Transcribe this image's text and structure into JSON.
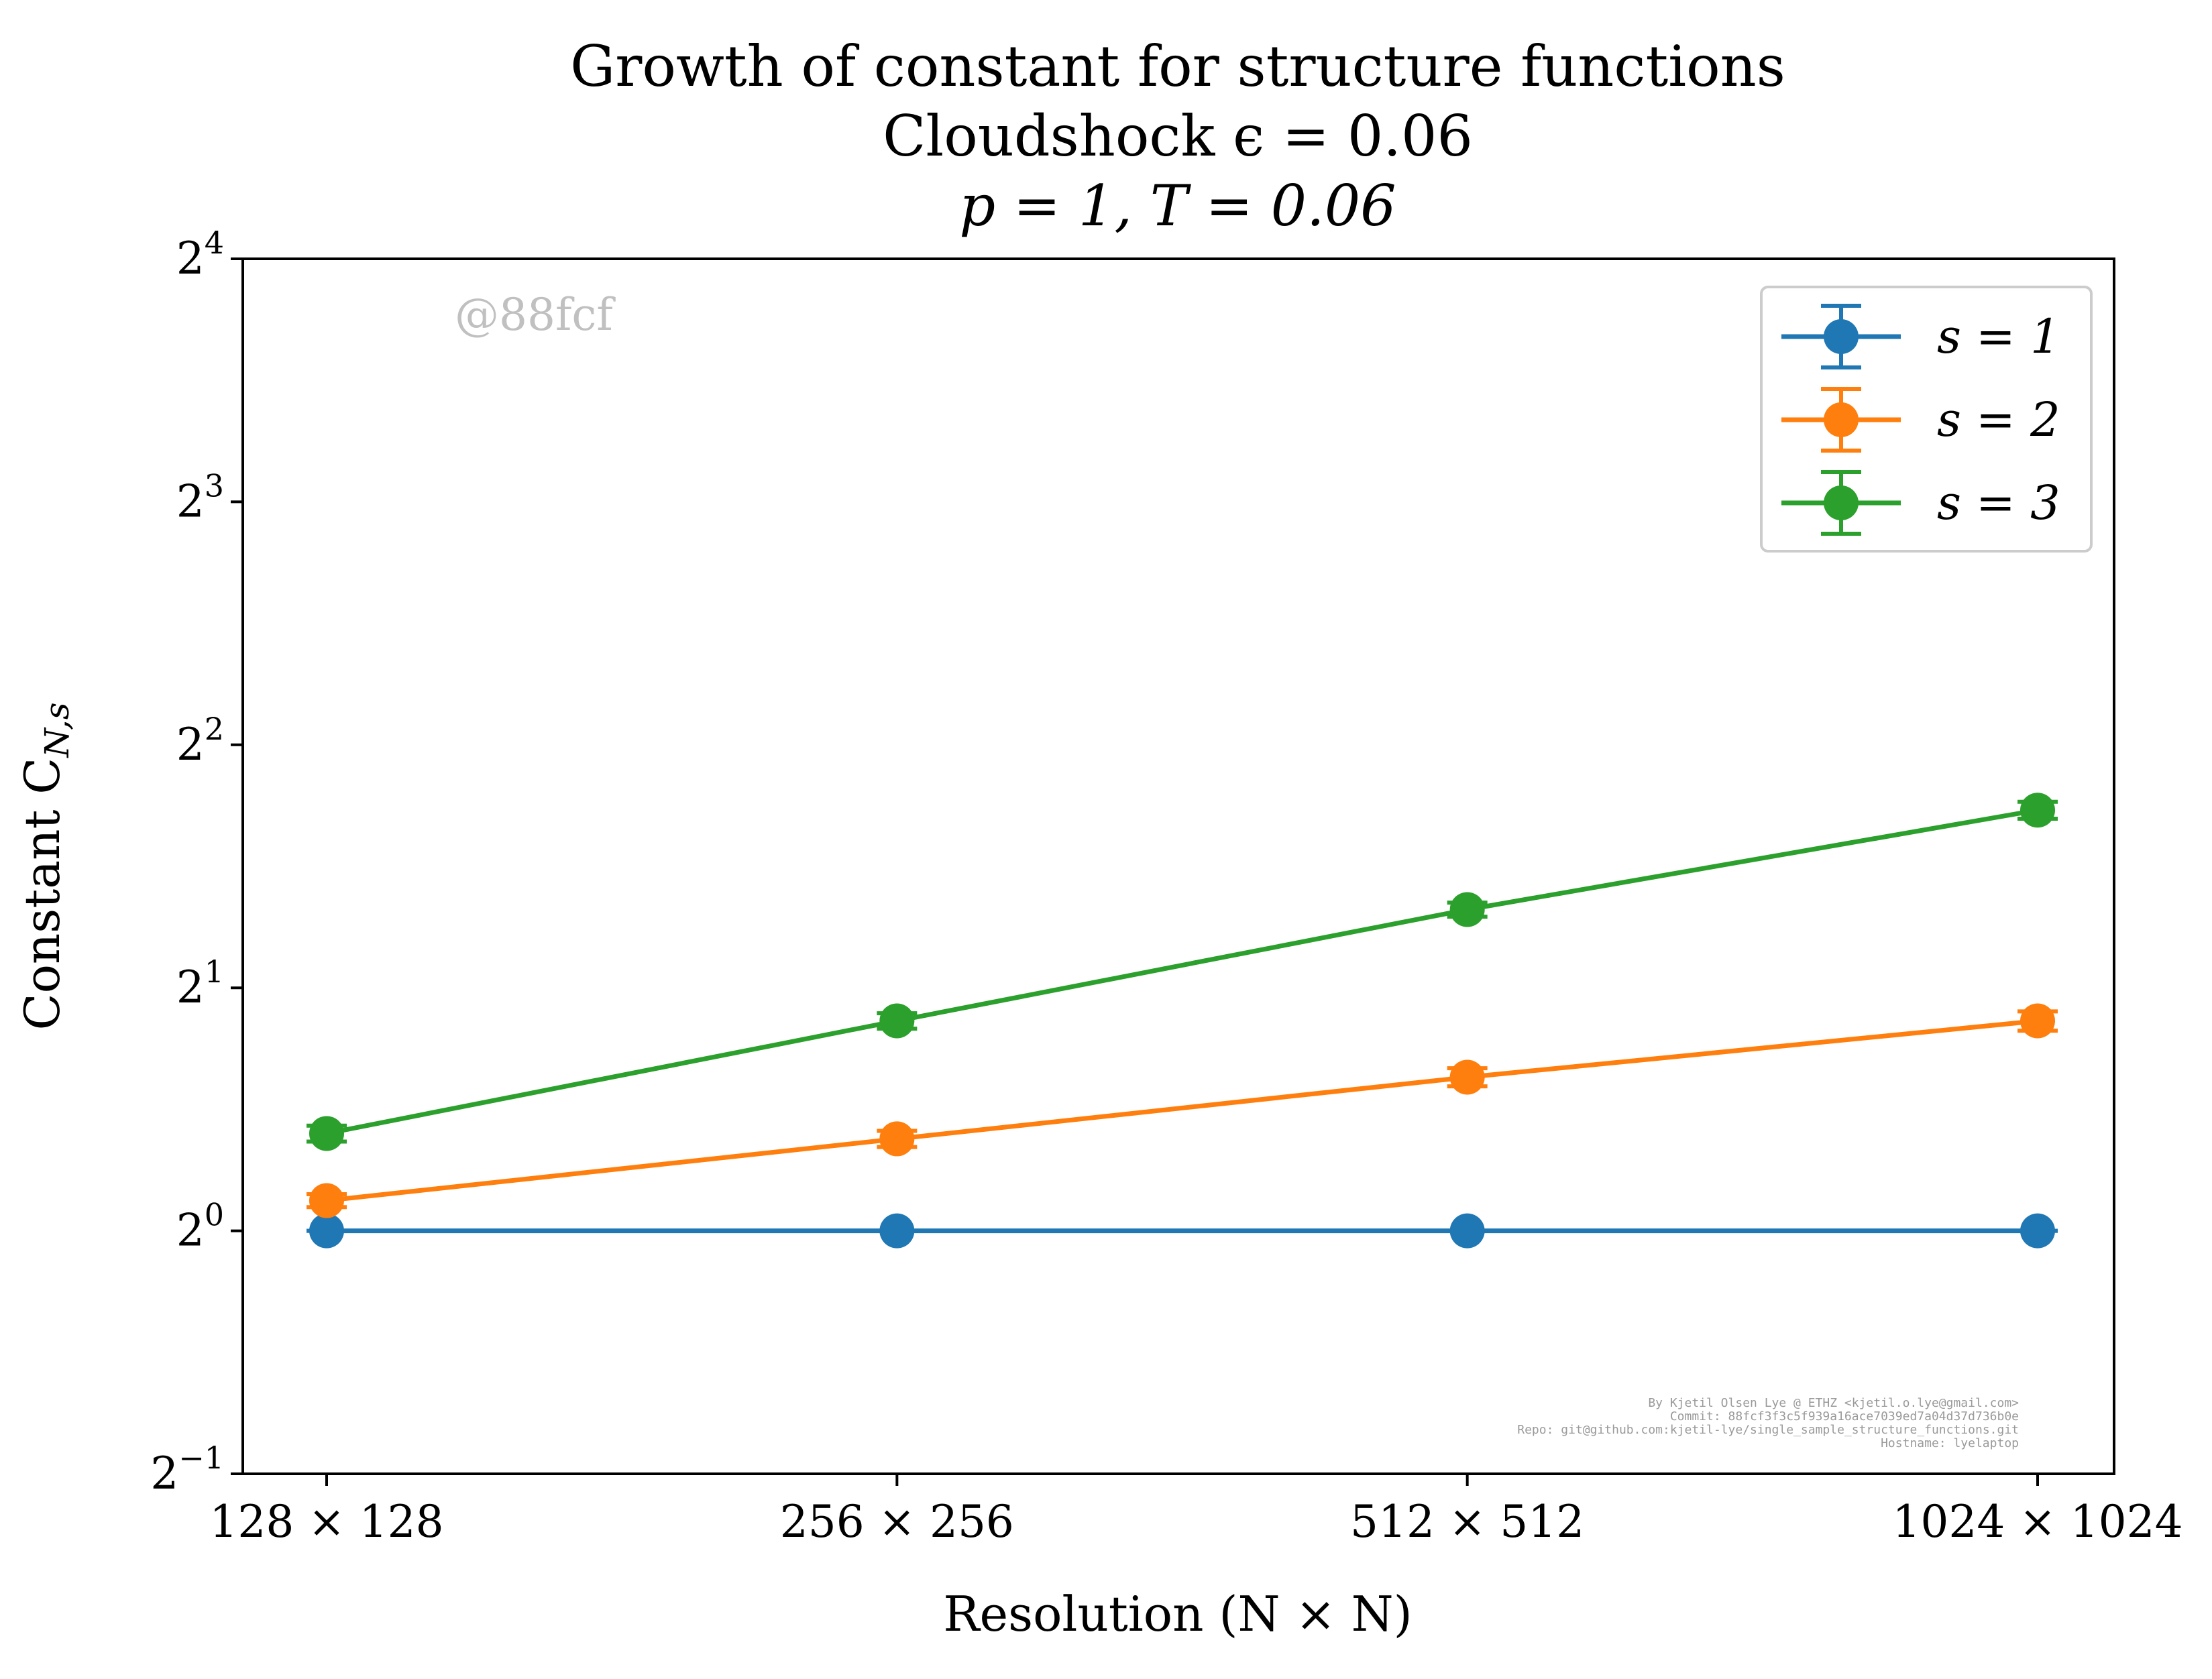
{
  "chart_data": {
    "type": "line",
    "title": [
      "Growth of constant for structure functions",
      "Cloudshock ϵ = 0.06",
      "p = 1, T = 0.06"
    ],
    "xlabel": "Resolution (N × N)",
    "ylabel": "Constant C",
    "ylabel_sub": "N,s",
    "categories": [
      "128 × 128",
      "256 × 256",
      "512 × 512",
      "1024 × 1024"
    ],
    "yscale": "log2",
    "ylim": [
      0.5,
      16
    ],
    "yticks": [
      {
        "value": 0.5,
        "base": "2",
        "exp": "−1"
      },
      {
        "value": 1,
        "base": "2",
        "exp": "0"
      },
      {
        "value": 2,
        "base": "2",
        "exp": "1"
      },
      {
        "value": 4,
        "base": "2",
        "exp": "2"
      },
      {
        "value": 8,
        "base": "2",
        "exp": "3"
      },
      {
        "value": 16,
        "base": "2",
        "exp": "4"
      }
    ],
    "series": [
      {
        "name": "s = 1",
        "color": "#1f77b4",
        "values": [
          1.0,
          1.0,
          1.0,
          1.0
        ],
        "errors": [
          0.0,
          0.0,
          0.0,
          0.0
        ]
      },
      {
        "name": "s = 2",
        "color": "#ff7f0e",
        "values": [
          1.09,
          1.3,
          1.55,
          1.82
        ],
        "errors": [
          0.02,
          0.03,
          0.04,
          0.05
        ]
      },
      {
        "name": "s = 3",
        "color": "#2ca02c",
        "values": [
          1.32,
          1.82,
          2.5,
          3.32
        ],
        "errors": [
          0.03,
          0.04,
          0.05,
          0.08
        ]
      }
    ],
    "legend_position": "top-right",
    "grid": false
  },
  "watermark": "@88fcf",
  "credits": [
    "By Kjetil Olsen Lye @ ETHZ <kjetil.o.lye@gmail.com>",
    "Commit: 88fcf3f3c5f939a16ace7039ed7a04d37d736b0e",
    "Repo: git@github.com:kjetil-lye/single_sample_structure_functions.git",
    "Hostname: lyelaptop"
  ]
}
